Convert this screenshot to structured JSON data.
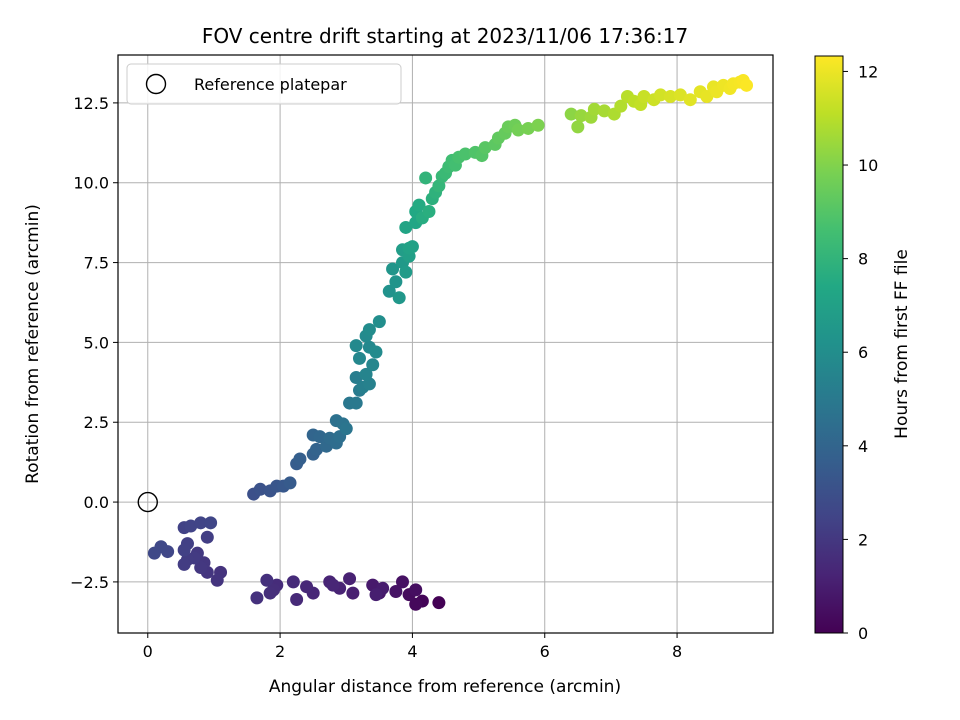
{
  "chart_data": {
    "type": "scatter",
    "title": "FOV centre drift starting at 2023/11/06 17:36:17",
    "xlabel": "Angular distance from reference (arcmin)",
    "ylabel": "Rotation from reference (arcmin)",
    "xlim": [
      -0.45,
      9.45
    ],
    "ylim": [
      -4.1,
      14.0
    ],
    "xticks": [
      0,
      2,
      4,
      6,
      8
    ],
    "xtick_labels": [
      "0",
      "2",
      "4",
      "6",
      "8"
    ],
    "yticks": [
      -2.5,
      0.0,
      2.5,
      5.0,
      7.5,
      10.0,
      12.5
    ],
    "ytick_labels": [
      "−2.5",
      "0.0",
      "2.5",
      "5.0",
      "7.5",
      "10.0",
      "12.5"
    ],
    "grid": true,
    "legend": {
      "placement": "upper-left",
      "entries": [
        "Reference platepar"
      ]
    },
    "reference_point": {
      "x": 0.0,
      "y": 0.0,
      "marker": "open-circle"
    },
    "colorbar": {
      "label": "Hours from first FF file",
      "range": [
        0,
        12.33
      ],
      "ticks": [
        0,
        2,
        4,
        6,
        8,
        10,
        12
      ],
      "tick_labels": [
        "0",
        "2",
        "4",
        "6",
        "8",
        "10",
        "12"
      ],
      "colormap": "viridis"
    },
    "series": [
      {
        "color_by": "hours",
        "points": [
          [
            4.4,
            -3.15,
            0.05
          ],
          [
            4.15,
            -3.1,
            0.15
          ],
          [
            4.05,
            -3.2,
            0.25
          ],
          [
            3.95,
            -2.9,
            0.35
          ],
          [
            4.05,
            -2.75,
            0.45
          ],
          [
            3.85,
            -2.5,
            0.55
          ],
          [
            3.75,
            -2.8,
            0.65
          ],
          [
            3.5,
            -2.85,
            0.75
          ],
          [
            3.4,
            -2.6,
            0.85
          ],
          [
            3.55,
            -2.7,
            0.95
          ],
          [
            3.45,
            -2.9,
            1.05
          ],
          [
            3.1,
            -2.85,
            1.1
          ],
          [
            3.05,
            -2.4,
            1.15
          ],
          [
            2.9,
            -2.7,
            1.2
          ],
          [
            2.75,
            -2.5,
            1.25
          ],
          [
            2.8,
            -2.6,
            1.3
          ],
          [
            2.5,
            -2.85,
            1.35
          ],
          [
            2.4,
            -2.65,
            1.4
          ],
          [
            2.25,
            -3.05,
            1.45
          ],
          [
            2.2,
            -2.5,
            1.5
          ],
          [
            1.95,
            -2.6,
            1.55
          ],
          [
            1.9,
            -2.75,
            1.6
          ],
          [
            1.85,
            -2.85,
            1.65
          ],
          [
            1.8,
            -2.45,
            1.7
          ],
          [
            1.65,
            -3.0,
            1.75
          ],
          [
            1.1,
            -2.2,
            1.8
          ],
          [
            1.05,
            -2.45,
            1.85
          ],
          [
            0.9,
            -2.2,
            1.9
          ],
          [
            0.85,
            -1.9,
            1.95
          ],
          [
            0.8,
            -2.05,
            2.0
          ],
          [
            0.75,
            -1.6,
            2.05
          ],
          [
            0.7,
            -1.75,
            2.1
          ],
          [
            0.6,
            -1.8,
            2.15
          ],
          [
            0.55,
            -1.95,
            2.2
          ],
          [
            0.9,
            -1.1,
            2.25
          ],
          [
            0.6,
            -1.3,
            2.3
          ],
          [
            0.55,
            -1.5,
            2.35
          ],
          [
            0.55,
            -0.8,
            2.4
          ],
          [
            0.65,
            -0.75,
            2.45
          ],
          [
            0.8,
            -0.65,
            2.5
          ],
          [
            0.95,
            -0.65,
            2.55
          ],
          [
            0.3,
            -1.55,
            2.6
          ],
          [
            0.2,
            -1.4,
            2.65
          ],
          [
            0.1,
            -1.6,
            2.7
          ],
          [
            1.6,
            0.25,
            3.0
          ],
          [
            1.7,
            0.4,
            3.1
          ],
          [
            1.85,
            0.35,
            3.2
          ],
          [
            1.95,
            0.5,
            3.3
          ],
          [
            2.05,
            0.5,
            3.4
          ],
          [
            2.15,
            0.6,
            3.5
          ],
          [
            2.25,
            1.2,
            3.6
          ],
          [
            2.3,
            1.35,
            3.7
          ],
          [
            2.5,
            1.5,
            3.8
          ],
          [
            2.55,
            1.65,
            3.9
          ],
          [
            2.5,
            2.1,
            4.0
          ],
          [
            2.6,
            2.05,
            4.1
          ],
          [
            2.7,
            1.75,
            4.2
          ],
          [
            2.75,
            2.0,
            4.3
          ],
          [
            2.85,
            1.85,
            4.4
          ],
          [
            2.9,
            2.05,
            4.5
          ],
          [
            2.85,
            2.55,
            4.6
          ],
          [
            2.95,
            2.45,
            4.7
          ],
          [
            3.0,
            2.3,
            4.8
          ],
          [
            3.05,
            3.1,
            4.9
          ],
          [
            3.15,
            3.1,
            5.0
          ],
          [
            3.2,
            3.5,
            5.1
          ],
          [
            3.15,
            3.9,
            5.2
          ],
          [
            3.25,
            3.6,
            5.3
          ],
          [
            3.35,
            3.7,
            5.4
          ],
          [
            3.3,
            4.0,
            5.5
          ],
          [
            3.4,
            4.3,
            5.6
          ],
          [
            3.2,
            4.5,
            5.65
          ],
          [
            3.35,
            4.85,
            5.7
          ],
          [
            3.15,
            4.9,
            5.75
          ],
          [
            3.3,
            5.2,
            5.8
          ],
          [
            3.45,
            4.7,
            5.85
          ],
          [
            3.35,
            5.4,
            5.9
          ],
          [
            3.5,
            5.65,
            6.0
          ],
          [
            3.65,
            6.6,
            6.2
          ],
          [
            3.75,
            6.9,
            6.3
          ],
          [
            3.7,
            7.3,
            6.4
          ],
          [
            3.8,
            6.4,
            6.5
          ],
          [
            3.85,
            7.5,
            6.6
          ],
          [
            3.9,
            7.2,
            6.7
          ],
          [
            3.85,
            7.9,
            6.8
          ],
          [
            3.95,
            7.7,
            6.9
          ],
          [
            4.0,
            8.0,
            7.0
          ],
          [
            3.95,
            7.95,
            7.1
          ],
          [
            3.9,
            8.6,
            7.2
          ],
          [
            4.05,
            8.75,
            7.3
          ],
          [
            4.05,
            9.1,
            7.4
          ],
          [
            4.1,
            9.3,
            7.5
          ],
          [
            4.15,
            8.9,
            7.6
          ],
          [
            4.25,
            9.1,
            7.7
          ],
          [
            4.3,
            9.5,
            7.8
          ],
          [
            4.35,
            9.7,
            7.9
          ],
          [
            4.2,
            10.15,
            8.0
          ],
          [
            4.4,
            9.9,
            8.1
          ],
          [
            4.45,
            10.2,
            8.2
          ],
          [
            4.5,
            10.3,
            8.3
          ],
          [
            4.55,
            10.5,
            8.4
          ],
          [
            4.6,
            10.7,
            8.5
          ],
          [
            4.65,
            10.55,
            8.6
          ],
          [
            4.7,
            10.8,
            8.7
          ],
          [
            4.8,
            10.9,
            8.8
          ],
          [
            4.95,
            10.95,
            8.9
          ],
          [
            5.05,
            10.85,
            9.0
          ],
          [
            5.1,
            11.1,
            9.1
          ],
          [
            5.25,
            11.2,
            9.2
          ],
          [
            5.3,
            11.4,
            9.3
          ],
          [
            5.4,
            11.55,
            9.4
          ],
          [
            5.45,
            11.75,
            9.5
          ],
          [
            5.55,
            11.8,
            9.6
          ],
          [
            5.6,
            11.65,
            9.7
          ],
          [
            5.75,
            11.7,
            9.8
          ],
          [
            5.9,
            11.8,
            9.9
          ],
          [
            6.4,
            12.15,
            10.2
          ],
          [
            6.5,
            11.75,
            10.3
          ],
          [
            6.55,
            12.1,
            10.4
          ],
          [
            6.7,
            12.05,
            10.5
          ],
          [
            6.75,
            12.3,
            10.6
          ],
          [
            6.9,
            12.25,
            10.7
          ],
          [
            7.05,
            12.15,
            10.8
          ],
          [
            7.15,
            12.4,
            10.9
          ],
          [
            7.25,
            12.7,
            11.0
          ],
          [
            7.35,
            12.55,
            11.1
          ],
          [
            7.45,
            12.45,
            11.2
          ],
          [
            7.5,
            12.7,
            11.3
          ],
          [
            7.65,
            12.6,
            11.4
          ],
          [
            7.75,
            12.75,
            11.5
          ],
          [
            7.9,
            12.7,
            11.6
          ],
          [
            8.05,
            12.75,
            11.7
          ],
          [
            8.2,
            12.6,
            11.8
          ],
          [
            8.35,
            12.85,
            11.85
          ],
          [
            8.45,
            12.7,
            11.9
          ],
          [
            8.55,
            13.0,
            11.95
          ],
          [
            8.6,
            12.85,
            12.0
          ],
          [
            8.7,
            13.05,
            12.05
          ],
          [
            8.8,
            12.95,
            12.1
          ],
          [
            8.85,
            13.1,
            12.15
          ],
          [
            8.95,
            13.15,
            12.2
          ],
          [
            9.0,
            13.2,
            12.25
          ],
          [
            9.05,
            13.05,
            12.3
          ]
        ]
      }
    ]
  }
}
